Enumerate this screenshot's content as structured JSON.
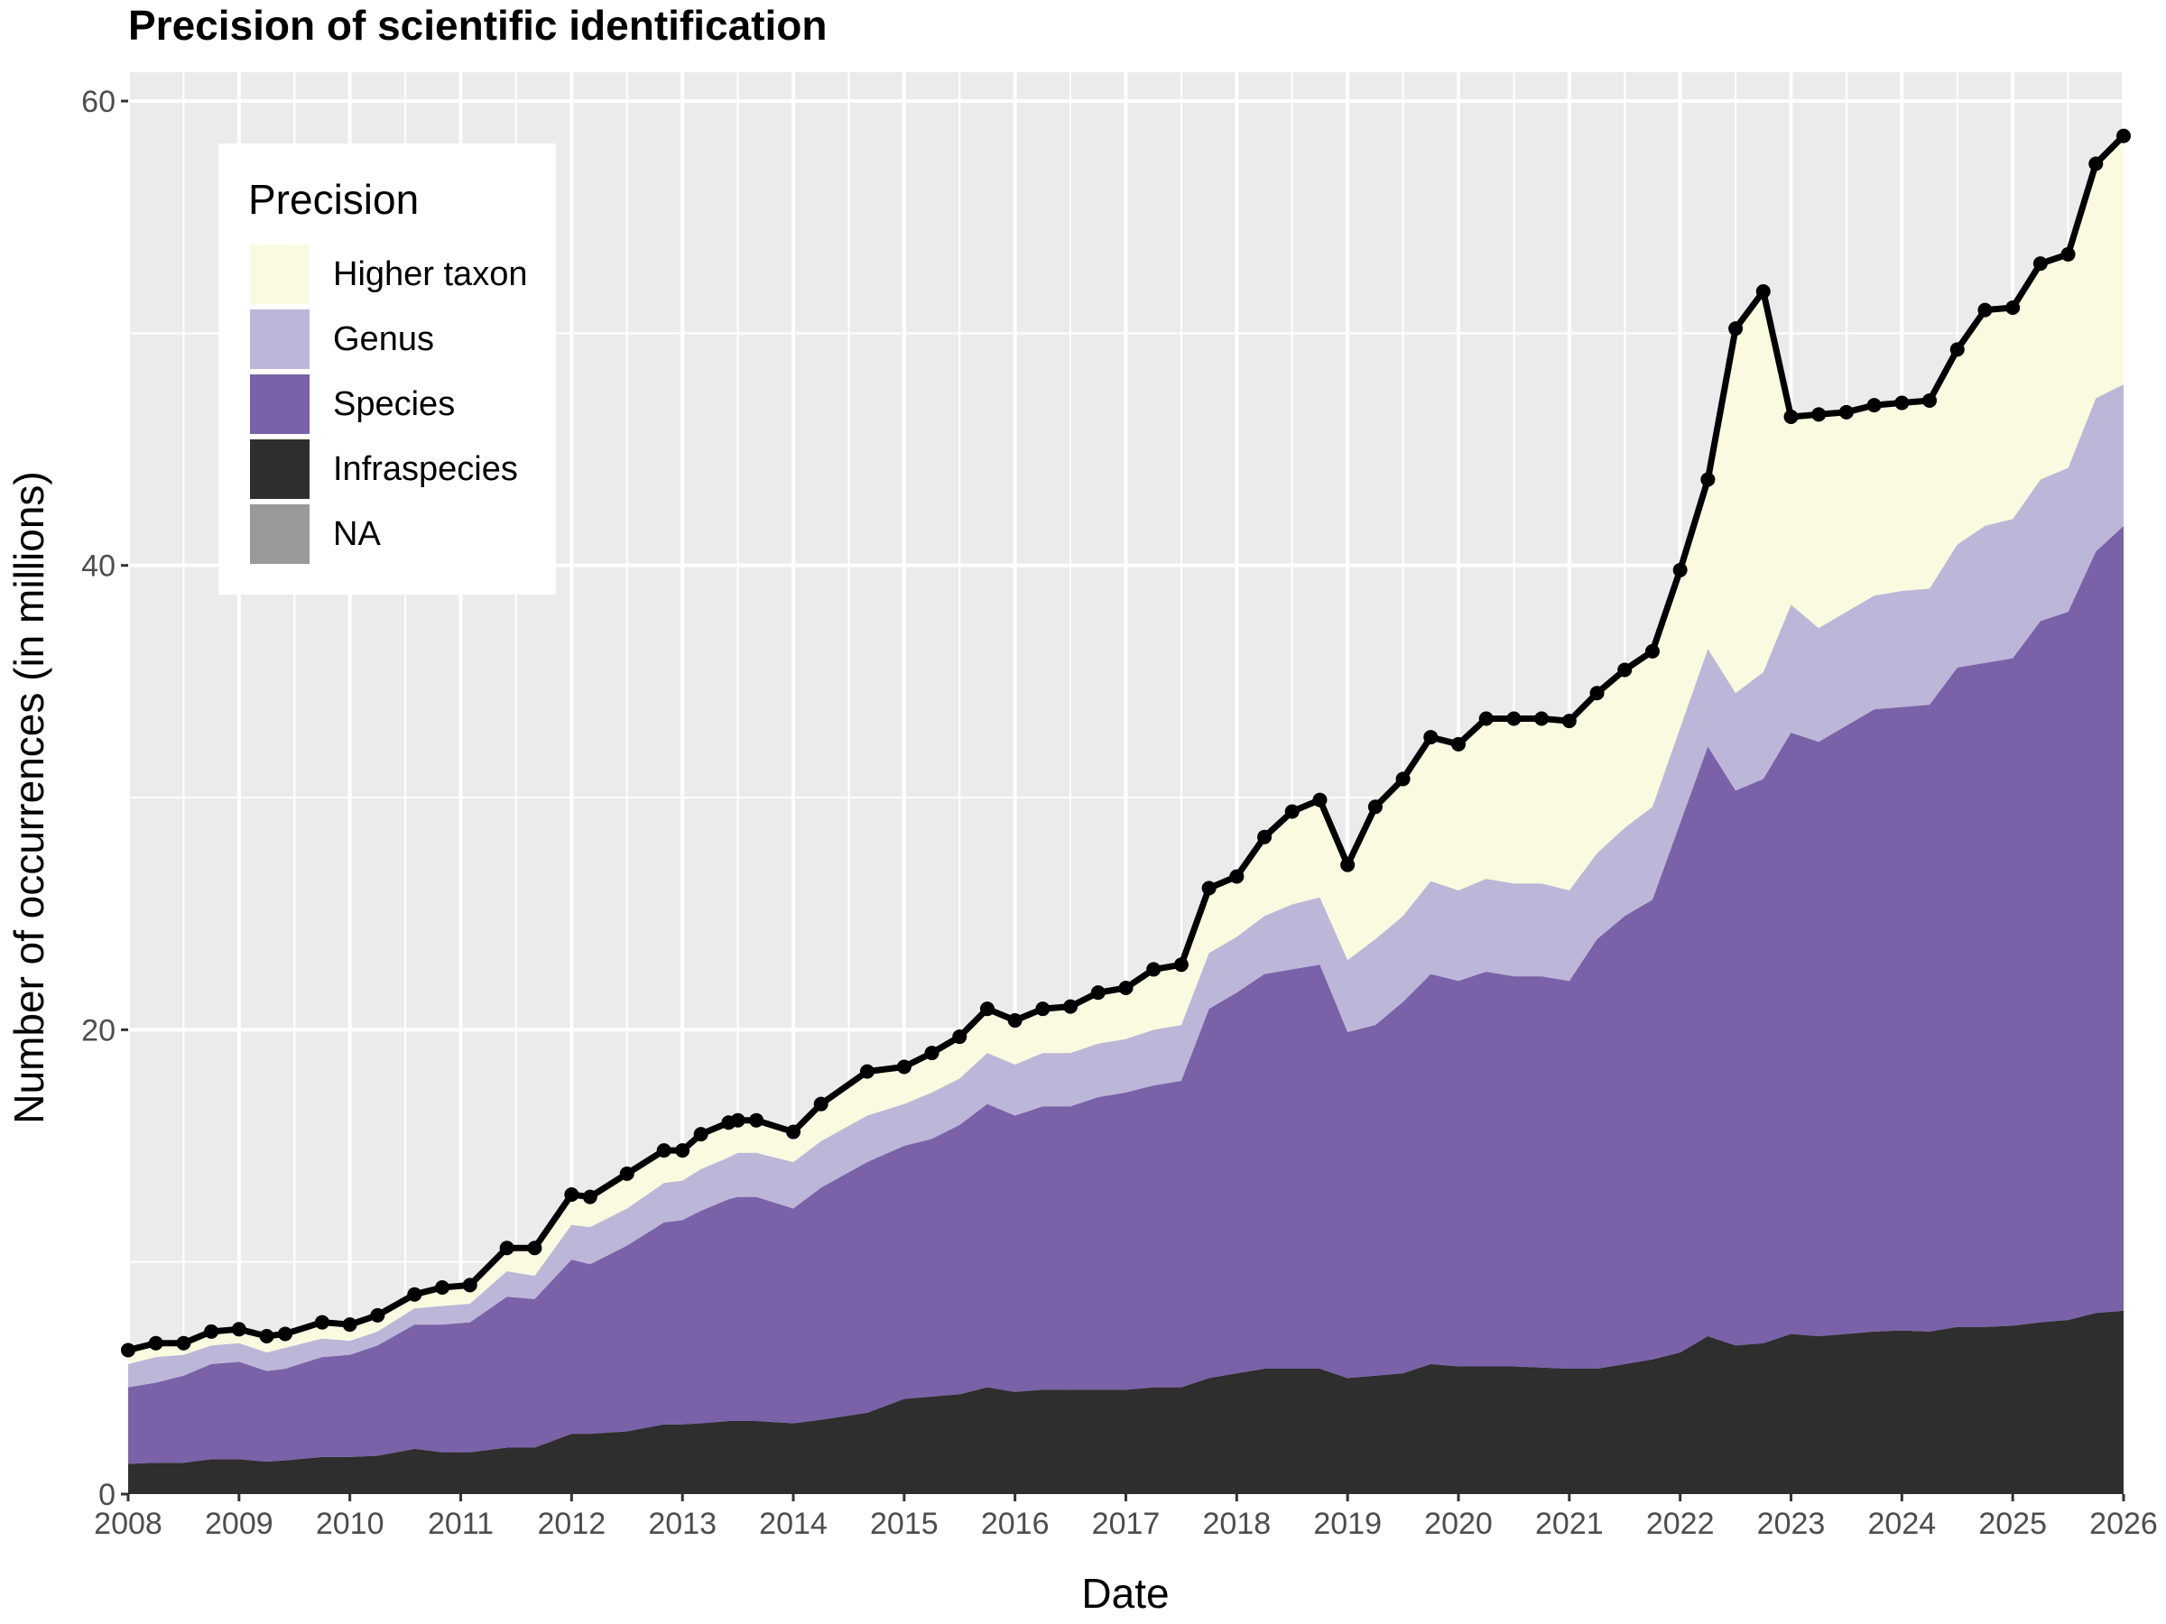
{
  "chart_data": {
    "type": "area",
    "title": "Precision of scientific identification",
    "xlabel": "Date",
    "ylabel": "Number of occurrences (in millions)",
    "xlim": [
      "2008-01-01",
      "2026-01-01"
    ],
    "ylim": [
      0,
      60
    ],
    "x_ticks": [
      "2008",
      "2009",
      "2010",
      "2011",
      "2012",
      "2013",
      "2014",
      "2015",
      "2016",
      "2017",
      "2018",
      "2019",
      "2020",
      "2021",
      "2022",
      "2023",
      "2024",
      "2025",
      "2026"
    ],
    "y_ticks": [
      0,
      20,
      40,
      60
    ],
    "grid": true,
    "stacked": true,
    "legend": {
      "title": "Precision",
      "placement": "top-left",
      "entries": [
        {
          "label": "Higher taxon",
          "color": "#FAFAE0"
        },
        {
          "label": "Genus",
          "color": "#BCB6D8"
        },
        {
          "label": "Species",
          "color": "#7A61A8"
        },
        {
          "label": "Infraspecies",
          "color": "#2E2E2E"
        },
        {
          "label": "NA",
          "color": "#999999"
        }
      ]
    },
    "dates": [
      "2008-01",
      "2008-04",
      "2008-07",
      "2008-10",
      "2009-01",
      "2009-04",
      "2009-06",
      "2009-10",
      "2010-01",
      "2010-04",
      "2010-08",
      "2010-11",
      "2011-02",
      "2011-06",
      "2011-09",
      "2012-01",
      "2012-03",
      "2012-07",
      "2012-11",
      "2013-01",
      "2013-03",
      "2013-06",
      "2013-07",
      "2013-09",
      "2014-01",
      "2014-04",
      "2014-09",
      "2015-01",
      "2015-04",
      "2015-07",
      "2015-10",
      "2016-01",
      "2016-04",
      "2016-07",
      "2016-10",
      "2017-01",
      "2017-04",
      "2017-07",
      "2017-10",
      "2018-01",
      "2018-04",
      "2018-07",
      "2018-10",
      "2019-01",
      "2019-04",
      "2019-07",
      "2019-10",
      "2020-01",
      "2020-04",
      "2020-07",
      "2020-10",
      "2021-01",
      "2021-04",
      "2021-07",
      "2021-10",
      "2022-01",
      "2022-04",
      "2022-07",
      "2022-10",
      "2023-01",
      "2023-04",
      "2023-07",
      "2023-10",
      "2024-01",
      "2024-04",
      "2024-07",
      "2024-10",
      "2025-01",
      "2025-04",
      "2025-07",
      "2025-10",
      "2026-01"
    ],
    "series": [
      {
        "name": "Infraspecies",
        "values": [
          1.3,
          1.35,
          1.35,
          1.5,
          1.5,
          1.4,
          1.45,
          1.6,
          1.6,
          1.65,
          1.95,
          1.8,
          1.8,
          2.0,
          2.0,
          2.6,
          2.6,
          2.7,
          3.0,
          3.0,
          3.05,
          3.15,
          3.15,
          3.15,
          3.05,
          3.2,
          3.5,
          4.1,
          4.2,
          4.3,
          4.6,
          4.4,
          4.5,
          4.5,
          4.5,
          4.5,
          4.6,
          4.6,
          5.0,
          5.2,
          5.4,
          5.4,
          5.4,
          5.0,
          5.1,
          5.2,
          5.6,
          5.5,
          5.5,
          5.5,
          5.45,
          5.4,
          5.4,
          5.6,
          5.8,
          6.1,
          6.8,
          6.4,
          6.5,
          6.9,
          6.8,
          6.9,
          7.0,
          7.05,
          7.0,
          7.2,
          7.2,
          7.25,
          7.4,
          7.5,
          7.8,
          7.9
        ]
      },
      {
        "name": "Species",
        "values": [
          3.3,
          3.45,
          3.75,
          4.1,
          4.2,
          3.9,
          3.95,
          4.3,
          4.4,
          4.75,
          5.35,
          5.5,
          5.6,
          6.5,
          6.4,
          7.5,
          7.3,
          8.0,
          8.7,
          8.8,
          9.15,
          9.55,
          9.65,
          9.65,
          9.25,
          10.0,
          10.8,
          10.9,
          11.1,
          11.6,
          12.2,
          11.9,
          12.2,
          12.2,
          12.6,
          12.8,
          13.0,
          13.2,
          15.9,
          16.4,
          17.0,
          17.2,
          17.4,
          14.9,
          15.1,
          16.0,
          16.8,
          16.6,
          17.0,
          16.8,
          16.85,
          16.7,
          18.5,
          19.3,
          19.8,
          22.8,
          25.4,
          23.9,
          24.3,
          25.9,
          25.6,
          26.2,
          26.8,
          26.85,
          27.0,
          28.4,
          28.6,
          28.75,
          30.2,
          30.5,
          32.8,
          33.8
        ]
      },
      {
        "name": "Genus",
        "values": [
          1.0,
          1.1,
          0.9,
          0.8,
          0.8,
          0.8,
          0.9,
          0.8,
          0.6,
          0.6,
          0.7,
          0.8,
          0.8,
          1.1,
          1.0,
          1.5,
          1.6,
          1.6,
          1.7,
          1.7,
          1.8,
          1.8,
          1.9,
          1.9,
          2.0,
          2.0,
          2.0,
          1.8,
          2.0,
          2.0,
          2.2,
          2.2,
          2.3,
          2.3,
          2.3,
          2.3,
          2.4,
          2.4,
          2.4,
          2.4,
          2.5,
          2.8,
          2.9,
          3.1,
          3.7,
          3.7,
          4.0,
          3.9,
          4.0,
          4.0,
          4.0,
          3.9,
          3.7,
          3.8,
          4.0,
          4.1,
          4.2,
          4.2,
          4.6,
          5.5,
          4.9,
          4.9,
          4.9,
          5.0,
          5.0,
          5.3,
          5.9,
          6.0,
          6.1,
          6.2,
          6.6,
          6.1
        ]
      },
      {
        "name": "Higher taxon",
        "values": [
          0.6,
          0.6,
          0.5,
          0.6,
          0.6,
          0.7,
          0.6,
          0.7,
          0.7,
          0.7,
          0.6,
          0.8,
          0.8,
          1.0,
          1.2,
          1.3,
          1.3,
          1.5,
          1.4,
          1.3,
          1.5,
          1.5,
          1.4,
          1.4,
          1.3,
          1.6,
          1.9,
          1.6,
          1.7,
          1.8,
          1.9,
          1.9,
          1.9,
          2.0,
          2.2,
          2.2,
          2.6,
          2.6,
          2.8,
          2.6,
          3.4,
          4.0,
          4.2,
          4.1,
          5.7,
          5.9,
          6.2,
          6.3,
          6.9,
          7.1,
          7.1,
          7.3,
          6.9,
          6.8,
          6.7,
          6.8,
          7.3,
          15.7,
          16.4,
          8.1,
          9.2,
          8.6,
          8.2,
          8.1,
          8.1,
          8.4,
          9.3,
          9.1,
          9.3,
          9.2,
          10.1,
          10.7
        ]
      },
      {
        "name": "NA",
        "values": [
          0,
          0,
          0,
          0,
          0,
          0,
          0,
          0,
          0,
          0,
          0,
          0,
          0,
          0,
          0,
          0,
          0,
          0,
          0,
          0,
          0,
          0,
          0,
          0,
          0,
          0,
          0,
          0,
          0,
          0,
          0,
          0,
          0,
          0,
          0,
          0,
          0,
          0,
          0,
          0,
          0,
          0,
          0,
          0,
          0,
          0,
          0,
          0,
          0,
          0,
          0,
          0,
          0,
          0,
          0,
          0,
          0,
          0,
          0,
          0,
          0,
          0,
          0,
          0,
          0,
          0,
          0,
          0,
          0,
          0,
          0,
          0
        ]
      }
    ],
    "total": {
      "values": [
        6.2,
        6.5,
        6.5,
        7.0,
        7.1,
        6.8,
        6.9,
        7.4,
        7.3,
        7.7,
        8.6,
        8.9,
        9.0,
        10.6,
        10.6,
        12.9,
        12.8,
        13.8,
        14.8,
        14.8,
        15.5,
        16.0,
        16.1,
        16.1,
        15.6,
        16.8,
        18.2,
        18.4,
        19.0,
        19.7,
        20.9,
        20.4,
        20.9,
        21.0,
        21.6,
        21.8,
        22.6,
        22.8,
        26.1,
        26.6,
        28.3,
        29.4,
        29.9,
        27.1,
        29.6,
        30.8,
        32.6,
        32.3,
        33.4,
        33.4,
        33.4,
        33.3,
        34.5,
        35.5,
        36.3,
        39.8,
        43.7,
        50.2,
        51.8,
        46.4,
        46.5,
        46.6,
        46.9,
        47.0,
        47.1,
        49.3,
        51.0,
        51.1,
        53.0,
        53.4,
        57.3,
        58.5
      ],
      "color": "#000000"
    }
  }
}
